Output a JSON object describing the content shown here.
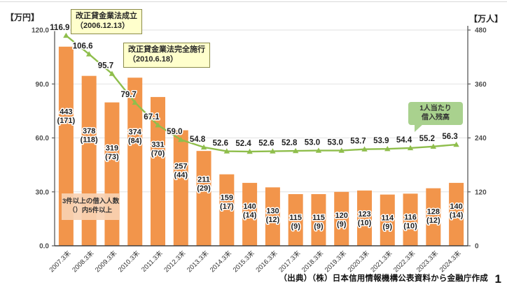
{
  "labels": {
    "left_axis_unit": "【万円】",
    "right_axis_unit": "【万人】",
    "source": "（出典）（株）日本信用情報機構公表資料から金融庁作成",
    "page_number": "1"
  },
  "annotations": {
    "law_enacted": {
      "line1": "改正貸金業法成立",
      "line2": "（2006.12.13）"
    },
    "law_full_enforcement": {
      "line1": "改正貸金業法完全施行",
      "line2": "（2010.6.18）"
    },
    "line_series_callout": {
      "line1": "1人当たり",
      "line2": "借入残高"
    },
    "bar_series_note": {
      "line1": "3件以上の借入人数",
      "line2": "（）内5件以上"
    }
  },
  "colors": {
    "bar": "#F2954B",
    "line": "#8FBE4C",
    "grid": "#E2E2E2",
    "axis": "#595959",
    "baseline": "#404040",
    "label_text": "#1f1f1f",
    "tick_text": "#4d4d4d"
  },
  "chart_data": {
    "type": "combo-bar-line",
    "categories": [
      "2007.3末",
      "2008.3末",
      "2009.3末",
      "2010.3末",
      "2011.3末",
      "2012.3末",
      "2013.3末",
      "2014.3末",
      "2015.3末",
      "2016.3末",
      "2017.3末",
      "2018.3末",
      "2019.3末",
      "2020.3末",
      "2021.3末",
      "2022.3末",
      "2023.3末",
      "2024.3末"
    ],
    "series": [
      {
        "name": "3件以上の借入人数（（）内5件以上）",
        "type": "bar",
        "axis": "right",
        "unit": "万人",
        "values": [
          443,
          378,
          319,
          374,
          331,
          257,
          211,
          159,
          140,
          130,
          115,
          115,
          120,
          123,
          114,
          116,
          128,
          140
        ],
        "values_5plus": [
          171,
          118,
          73,
          84,
          70,
          44,
          29,
          17,
          14,
          12,
          9,
          9,
          9,
          10,
          9,
          10,
          12,
          14
        ]
      },
      {
        "name": "1人当たり借入残高",
        "type": "line",
        "axis": "left",
        "unit": "万円",
        "values": [
          116.9,
          106.6,
          95.7,
          79.7,
          67.1,
          59.0,
          54.8,
          52.6,
          52.4,
          52.6,
          52.8,
          53.0,
          53.0,
          53.7,
          53.9,
          54.4,
          55.2,
          56.3
        ]
      }
    ],
    "left_axis": {
      "min": 0,
      "max": 120,
      "tick_values": [
        120,
        90,
        60,
        30,
        0
      ],
      "tick_labels": [
        "120.0",
        "90.0",
        "60.0",
        "30.0",
        "0.0"
      ]
    },
    "right_axis": {
      "min": 0,
      "max": 480,
      "tick_values": [
        480,
        360,
        240,
        120,
        0
      ],
      "tick_labels": [
        "480",
        "360",
        "240",
        "120",
        "0"
      ]
    },
    "grid": true,
    "legend_position": "none (callout annotations instead)"
  }
}
